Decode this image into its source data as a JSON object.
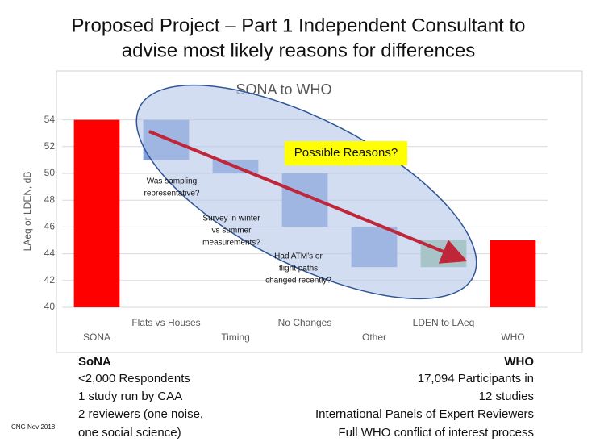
{
  "slide": {
    "title_lines": [
      "Proposed Project – Part 1 Independent Consultant to",
      "advise most likely reasons for differences"
    ],
    "left_heading": "SoNA",
    "left_lines": [
      "<2,000 Respondents",
      "1 study run by CAA",
      "2 reviewers (one noise,",
      "one social science)"
    ],
    "right_heading": "WHO",
    "right_lines": [
      "17,094 Participants in",
      "12 studies",
      "International Panels of Expert Reviewers",
      "Full WHO conflict of interest process"
    ],
    "footer": "CNG Nov 2018"
  },
  "chart_data": {
    "type": "waterfall",
    "title": "SONA to WHO",
    "y_label": "LAeq or LDEN, dB",
    "categories": [
      "SONA",
      "Flats vs Houses",
      "Timing",
      "No Changes",
      "Other",
      "LDEN to LAeq",
      "WHO"
    ],
    "values": [
      54,
      -3,
      -1,
      -4,
      -3,
      2,
      45
    ],
    "totals": [
      true,
      false,
      false,
      false,
      false,
      false,
      true
    ],
    "total_color": "#ff0000",
    "decrease_color": "#7f9fdc",
    "increase_color": "#94c39a",
    "ylim": [
      40,
      55
    ],
    "yticks": [
      40,
      42,
      44,
      46,
      48,
      50,
      52,
      54
    ],
    "grid": true,
    "callout": "Possible Reasons?",
    "annotations": [
      [
        "Was sampling",
        "representative?"
      ],
      [
        "Survey in winter",
        "vs summer",
        "measurements?"
      ],
      [
        "Had ATM’s or",
        "flight paths",
        "changed recently?"
      ]
    ]
  }
}
